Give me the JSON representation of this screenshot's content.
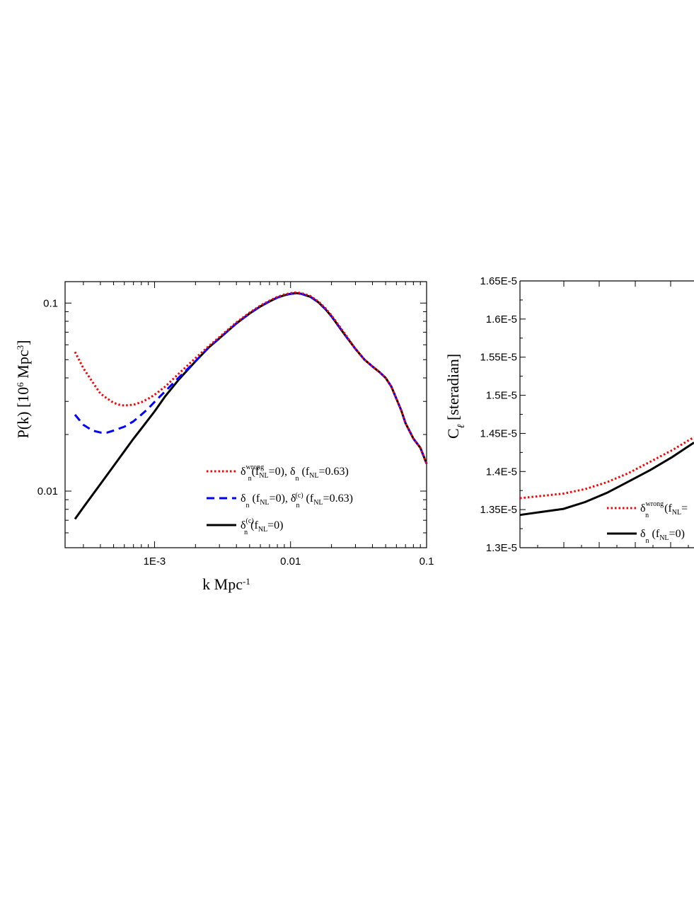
{
  "chart_data": [
    {
      "type": "line",
      "xlabel": "k  Mpc",
      "xlabel_sup": "-1",
      "ylabel": "P(k) [10",
      "ylabel_sup6": "6",
      "ylabel_mid": " Mpc",
      "ylabel_sup3": "3",
      "ylabel_end": "]",
      "xscale": "log",
      "yscale": "log",
      "xlim": [
        0.00022,
        0.1
      ],
      "ylim": [
        0.005,
        0.13
      ],
      "xticks": [
        {
          "value": 0.001,
          "label": "1E-3"
        },
        {
          "value": 0.01,
          "label": "0.01"
        },
        {
          "value": 0.1,
          "label": "0.1"
        }
      ],
      "yticks": [
        {
          "value": 0.01,
          "label": "0.01"
        },
        {
          "value": 0.1,
          "label": "0.1"
        }
      ],
      "legend_position": "lower-right",
      "series": [
        {
          "key": "red",
          "style": "dotted",
          "color": "#ff0000",
          "legend_parts": [
            "δ",
            "wrong",
            "n",
            "(f",
            "NL",
            "=0), δ",
            "n",
            " (f",
            "NL",
            "=0.63)"
          ],
          "x": [
            0.00026,
            0.0003,
            0.00035,
            0.0004,
            0.00045,
            0.0005,
            0.00055,
            0.0006,
            0.0007,
            0.0008,
            0.0009,
            0.001,
            0.0012,
            0.0015,
            0.002,
            0.0025,
            0.003,
            0.004,
            0.005,
            0.006,
            0.007,
            0.008,
            0.009,
            0.01,
            0.011,
            0.012,
            0.014,
            0.016,
            0.018,
            0.02,
            0.025,
            0.03,
            0.035,
            0.04,
            0.045,
            0.05,
            0.055,
            0.06,
            0.065,
            0.07,
            0.08,
            0.09,
            0.1
          ],
          "y": [
            0.055,
            0.045,
            0.038,
            0.033,
            0.031,
            0.0295,
            0.0288,
            0.0285,
            0.0288,
            0.0297,
            0.031,
            0.0325,
            0.036,
            0.042,
            0.051,
            0.059,
            0.066,
            0.079,
            0.089,
            0.097,
            0.103,
            0.108,
            0.111,
            0.113,
            0.114,
            0.113,
            0.109,
            0.102,
            0.094,
            0.086,
            0.069,
            0.057,
            0.05,
            0.046,
            0.043,
            0.04,
            0.036,
            0.031,
            0.027,
            0.023,
            0.019,
            0.017,
            0.014
          ]
        },
        {
          "key": "blue",
          "style": "dashed",
          "color": "#0000ff",
          "legend_parts": [
            "δ",
            "",
            "n",
            " (f",
            "NL",
            "=0), δ",
            "n",
            "(c)",
            " (f",
            "NL",
            "=0.63)"
          ],
          "x": [
            0.00026,
            0.0003,
            0.00035,
            0.0004,
            0.00045,
            0.0005,
            0.0006,
            0.0007,
            0.0008,
            0.0009,
            0.001,
            0.0012,
            0.0015,
            0.002,
            0.0025,
            0.003,
            0.004,
            0.005,
            0.006,
            0.007,
            0.008,
            0.009,
            0.01,
            0.011,
            0.012,
            0.014,
            0.016,
            0.018,
            0.02,
            0.025,
            0.03,
            0.035,
            0.04,
            0.045,
            0.05,
            0.055,
            0.06,
            0.065,
            0.07,
            0.08,
            0.09,
            0.1
          ],
          "y": [
            0.0255,
            0.0225,
            0.021,
            0.0205,
            0.0205,
            0.021,
            0.022,
            0.0235,
            0.0255,
            0.0275,
            0.0298,
            0.034,
            0.04,
            0.049,
            0.058,
            0.065,
            0.078,
            0.088,
            0.096,
            0.102,
            0.107,
            0.11,
            0.112,
            0.113,
            0.112,
            0.108,
            0.101,
            0.093,
            0.085,
            0.068,
            0.057,
            0.05,
            0.046,
            0.043,
            0.04,
            0.036,
            0.031,
            0.027,
            0.023,
            0.019,
            0.017,
            0.014
          ]
        },
        {
          "key": "black",
          "style": "solid",
          "color": "#000000",
          "legend_parts": [
            "δ",
            "(c)",
            "n",
            " (f",
            "NL",
            "=0)"
          ],
          "x": [
            0.00026,
            0.0003,
            0.0004,
            0.0005,
            0.0006,
            0.0007,
            0.0008,
            0.001,
            0.0012,
            0.0015,
            0.002,
            0.0025,
            0.003,
            0.004,
            0.005,
            0.006,
            0.007,
            0.008,
            0.009,
            0.01,
            0.011,
            0.012,
            0.014,
            0.016,
            0.018,
            0.02,
            0.025,
            0.03,
            0.035,
            0.04,
            0.045,
            0.05,
            0.055,
            0.06,
            0.065,
            0.07,
            0.08,
            0.09,
            0.1
          ],
          "y": [
            0.0071,
            0.0082,
            0.0109,
            0.0136,
            0.0163,
            0.019,
            0.0215,
            0.0265,
            0.032,
            0.039,
            0.049,
            0.058,
            0.065,
            0.078,
            0.088,
            0.096,
            0.102,
            0.107,
            0.11,
            0.112,
            0.113,
            0.112,
            0.108,
            0.101,
            0.093,
            0.085,
            0.068,
            0.057,
            0.05,
            0.046,
            0.043,
            0.04,
            0.036,
            0.031,
            0.027,
            0.023,
            0.019,
            0.017,
            0.014
          ]
        }
      ]
    },
    {
      "type": "line",
      "ylabel": "C",
      "ylabel_sub": "ℓ",
      "ylabel_rest": " [steradian]",
      "ylim": [
        1.3e-05,
        1.65e-05
      ],
      "yticks": [
        {
          "value": 1.3e-05,
          "label": "1.3E-5"
        },
        {
          "value": 1.35e-05,
          "label": "1.35E-5"
        },
        {
          "value": 1.4e-05,
          "label": "1.4E-5"
        },
        {
          "value": 1.45e-05,
          "label": "1.45E-5"
        },
        {
          "value": 1.5e-05,
          "label": "1.5E-5"
        },
        {
          "value": 1.55e-05,
          "label": "1.55E-5"
        },
        {
          "value": 1.6e-05,
          "label": "1.6E-5"
        },
        {
          "value": 1.65e-05,
          "label": "1.65E-5"
        }
      ],
      "legend_position": "lower-right",
      "series": [
        {
          "key": "red",
          "style": "dotted",
          "color": "#ff0000",
          "legend_parts": [
            "δ",
            "wrong",
            "n",
            " (f",
            "NL",
            "="
          ],
          "y": [
            1.365e-05,
            1.368e-05,
            1.371e-05,
            1.377e-05,
            1.386e-05,
            1.398e-05,
            1.413e-05,
            1.428e-05,
            1.445e-05
          ]
        },
        {
          "key": "black",
          "style": "solid",
          "color": "#000000",
          "legend_parts": [
            "δ",
            "",
            "n",
            " (f",
            "NL",
            "=0)"
          ],
          "y": [
            1.343e-05,
            1.347e-05,
            1.351e-05,
            1.36e-05,
            1.372e-05,
            1.387e-05,
            1.402e-05,
            1.419e-05,
            1.438e-05
          ]
        }
      ]
    }
  ]
}
